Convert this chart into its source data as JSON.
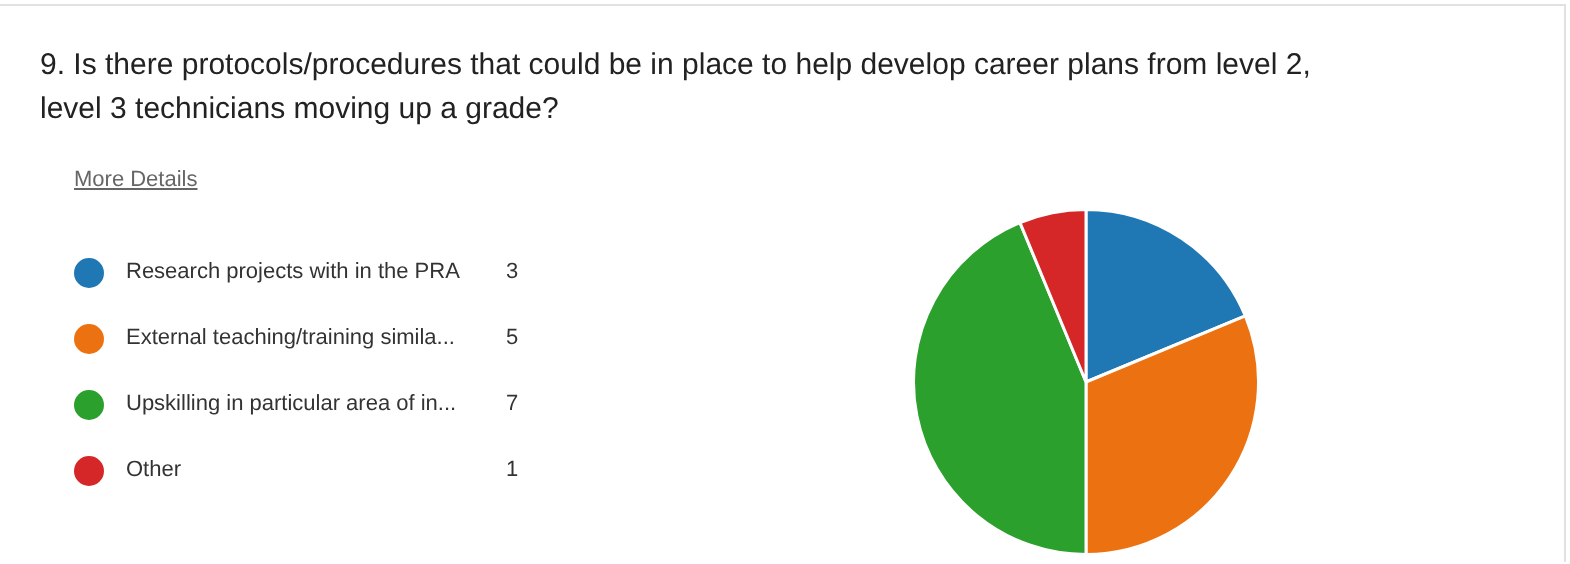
{
  "chart_data": {
    "type": "pie",
    "title": "9.  Is there protocols/procedures that could be in place to help develop career plans from level 2, level 3 technicians moving up a grade?",
    "annotations": [
      "More Details"
    ],
    "categories": [
      "Research projects with in the PRA",
      "External teaching/training simila...",
      "Upskilling in particular area of in...",
      "Other"
    ],
    "values": [
      3,
      5,
      7,
      1
    ],
    "colors": [
      "#1f77b4",
      "#ec7211",
      "#2ca02c",
      "#d62728"
    ],
    "legend": "left",
    "data_labels": true
  }
}
